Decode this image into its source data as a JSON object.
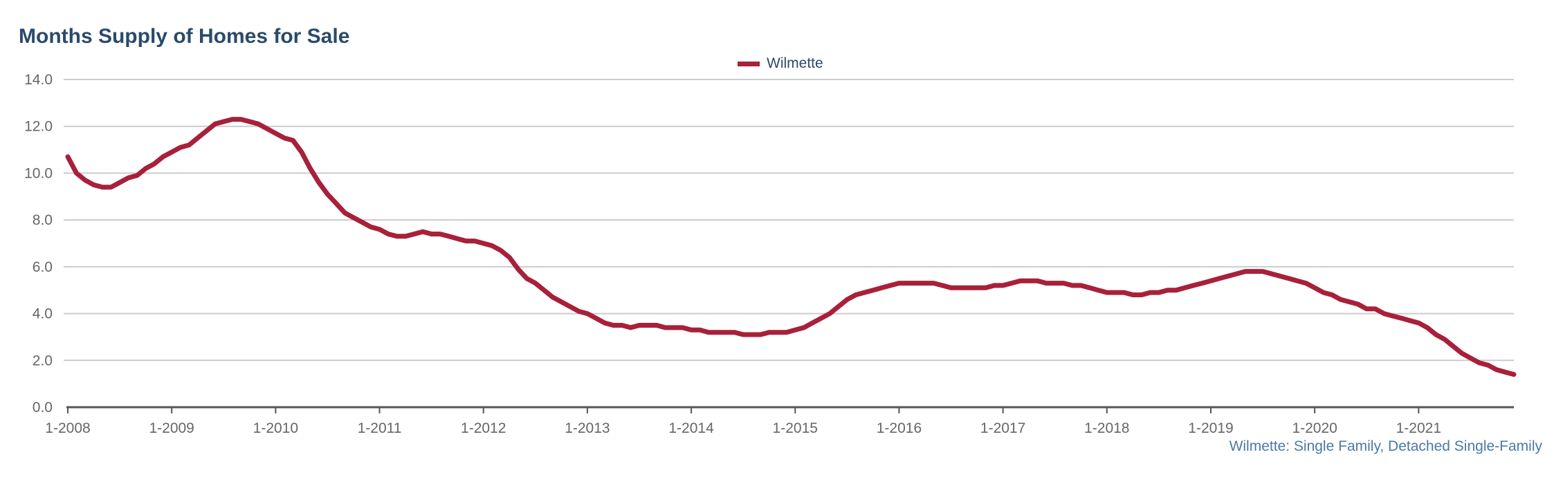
{
  "chart_data": {
    "type": "line",
    "title": "Months Supply of Homes for Sale",
    "xlabel": "",
    "ylabel": "",
    "ylim": [
      0,
      14
    ],
    "yticks": [
      "0.0",
      "2.0",
      "4.0",
      "6.0",
      "8.0",
      "10.0",
      "12.0",
      "14.0"
    ],
    "xticks": [
      "1-2008",
      "1-2009",
      "1-2010",
      "1-2011",
      "1-2012",
      "1-2013",
      "1-2014",
      "1-2015",
      "1-2016",
      "1-2017",
      "1-2018",
      "1-2019",
      "1-2020",
      "1-2021"
    ],
    "grid": true,
    "legend_position": "top-center",
    "x_start": "1-2008",
    "x_end": "12-2021",
    "series": [
      {
        "name": "Wilmette",
        "color": "#a8203a",
        "values": [
          10.7,
          10.0,
          9.7,
          9.5,
          9.4,
          9.4,
          9.6,
          9.8,
          9.9,
          10.2,
          10.4,
          10.7,
          10.9,
          11.1,
          11.2,
          11.5,
          11.8,
          12.1,
          12.2,
          12.3,
          12.3,
          12.2,
          12.1,
          11.9,
          11.7,
          11.5,
          11.4,
          10.9,
          10.2,
          9.6,
          9.1,
          8.7,
          8.3,
          8.1,
          7.9,
          7.7,
          7.6,
          7.4,
          7.3,
          7.3,
          7.4,
          7.5,
          7.4,
          7.4,
          7.3,
          7.2,
          7.1,
          7.1,
          7.0,
          6.9,
          6.7,
          6.4,
          5.9,
          5.5,
          5.3,
          5.0,
          4.7,
          4.5,
          4.3,
          4.1,
          4.0,
          3.8,
          3.6,
          3.5,
          3.5,
          3.4,
          3.5,
          3.5,
          3.5,
          3.4,
          3.4,
          3.4,
          3.3,
          3.3,
          3.2,
          3.2,
          3.2,
          3.2,
          3.1,
          3.1,
          3.1,
          3.2,
          3.2,
          3.2,
          3.3,
          3.4,
          3.6,
          3.8,
          4.0,
          4.3,
          4.6,
          4.8,
          4.9,
          5.0,
          5.1,
          5.2,
          5.3,
          5.3,
          5.3,
          5.3,
          5.3,
          5.2,
          5.1,
          5.1,
          5.1,
          5.1,
          5.1,
          5.2,
          5.2,
          5.3,
          5.4,
          5.4,
          5.4,
          5.3,
          5.3,
          5.3,
          5.2,
          5.2,
          5.1,
          5.0,
          4.9,
          4.9,
          4.9,
          4.8,
          4.8,
          4.9,
          4.9,
          5.0,
          5.0,
          5.1,
          5.2,
          5.3,
          5.4,
          5.5,
          5.6,
          5.7,
          5.8,
          5.8,
          5.8,
          5.7,
          5.6,
          5.5,
          5.4,
          5.3,
          5.1,
          4.9,
          4.8,
          4.6,
          4.5,
          4.4,
          4.2,
          4.2,
          4.0,
          3.9,
          3.8,
          3.7,
          3.6,
          3.4,
          3.1,
          2.9,
          2.6,
          2.3,
          2.1,
          1.9,
          1.8,
          1.6,
          1.5,
          1.4
        ]
      }
    ],
    "footnote": "Wilmette: Single Family, Detached Single-Family"
  },
  "colors": {
    "title": "#2b4a6b",
    "series": "#a8203a",
    "grid": "#cccccc",
    "axis": "#666666",
    "footnote": "#4a79a8"
  }
}
